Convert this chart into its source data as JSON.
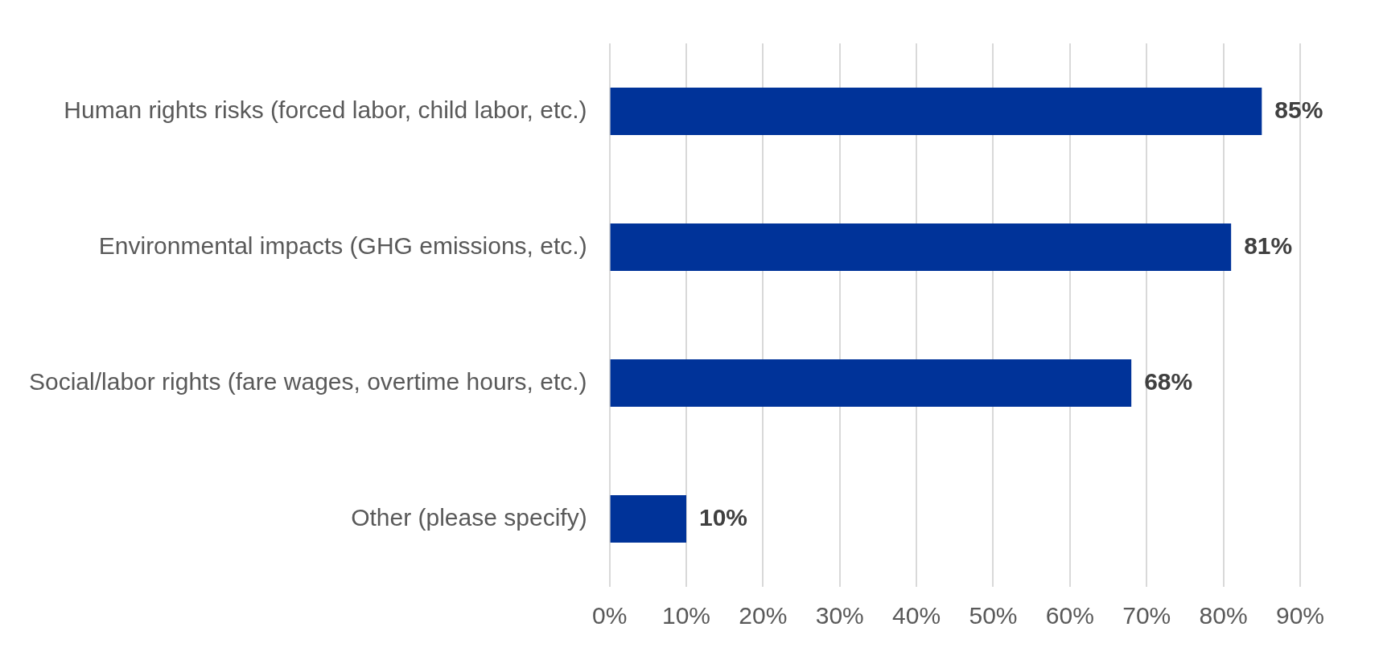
{
  "chart_data": {
    "type": "bar",
    "orientation": "horizontal",
    "categories": [
      "Human rights risks (forced labor, child labor, etc.)",
      "Environmental impacts (GHG emissions, etc.)",
      "Social/labor rights (fare wages, overtime hours, etc.)",
      "Other (please specify)"
    ],
    "values": [
      85,
      81,
      68,
      10
    ],
    "value_labels": [
      "85%",
      "81%",
      "68%",
      "10%"
    ],
    "color": "#003399",
    "xlim": [
      0,
      90
    ],
    "xticks": [
      {
        "value": 0,
        "label": "0%"
      },
      {
        "value": 10,
        "label": "10%"
      },
      {
        "value": 20,
        "label": "20%"
      },
      {
        "value": 30,
        "label": "30%"
      },
      {
        "value": 40,
        "label": "40%"
      },
      {
        "value": 50,
        "label": "50%"
      },
      {
        "value": 60,
        "label": "60%"
      },
      {
        "value": 70,
        "label": "70%"
      },
      {
        "value": 80,
        "label": "80%"
      },
      {
        "value": 90,
        "label": "90%"
      }
    ],
    "grid": "x"
  }
}
